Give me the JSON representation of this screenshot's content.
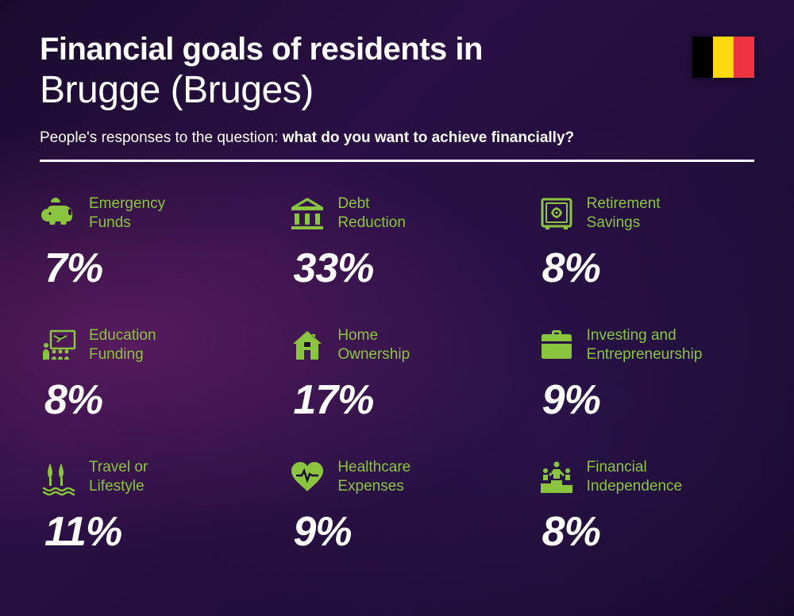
{
  "title_line1": "Financial goals of residents in",
  "title_line2": "Brugge (Bruges)",
  "subtitle_prefix": "People's responses to the question: ",
  "subtitle_bold": "what do you want to achieve financially?",
  "flag_colors": [
    "#000000",
    "#FFD90F",
    "#EF3340"
  ],
  "accent_color": "#8BC53F",
  "text_color": "#ffffff",
  "value_color": "#ffffff",
  "background_gradient": {
    "from": "#1a0b2e",
    "mid": "#2a1045",
    "to": "#150828"
  },
  "items": [
    {
      "icon": "piggy",
      "label_l1": "Emergency",
      "label_l2": "Funds",
      "value": "7%"
    },
    {
      "icon": "bank",
      "label_l1": "Debt",
      "label_l2": "Reduction",
      "value": "33%"
    },
    {
      "icon": "safe",
      "label_l1": "Retirement",
      "label_l2": "Savings",
      "value": "8%"
    },
    {
      "icon": "education",
      "label_l1": "Education",
      "label_l2": "Funding",
      "value": "8%"
    },
    {
      "icon": "house",
      "label_l1": "Home",
      "label_l2": "Ownership",
      "value": "17%"
    },
    {
      "icon": "briefcase",
      "label_l1": "Investing and",
      "label_l2": "Entrepreneurship",
      "value": "9%"
    },
    {
      "icon": "travel",
      "label_l1": "Travel or",
      "label_l2": "Lifestyle",
      "value": "11%"
    },
    {
      "icon": "health",
      "label_l1": "Healthcare",
      "label_l2": "Expenses",
      "value": "9%"
    },
    {
      "icon": "podium",
      "label_l1": "Financial",
      "label_l2": "Independence",
      "value": "8%"
    }
  ]
}
